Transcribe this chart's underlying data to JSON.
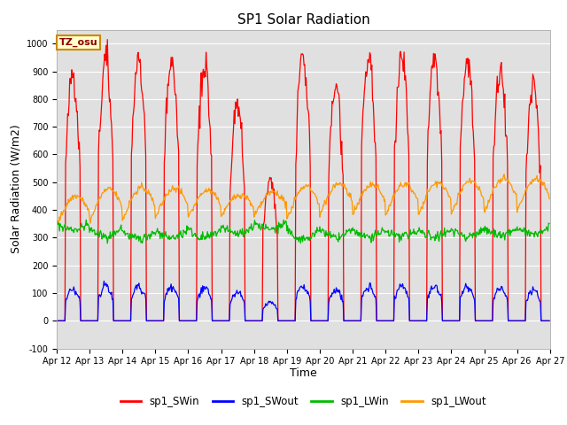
{
  "title": "SP1 Solar Radiation",
  "ylabel": "Solar Radiation (W/m2)",
  "xlabel": "Time",
  "ylim": [
    -100,
    1050
  ],
  "xtick_labels": [
    "Apr 12",
    "Apr 13",
    "Apr 14",
    "Apr 15",
    "Apr 16",
    "Apr 17",
    "Apr 18",
    "Apr 19",
    "Apr 20",
    "Apr 21",
    "Apr 22",
    "Apr 23",
    "Apr 24",
    "Apr 25",
    "Apr 26",
    "Apr 27"
  ],
  "ytick_positions": [
    -100,
    0,
    100,
    200,
    300,
    400,
    500,
    600,
    700,
    800,
    900,
    1000
  ],
  "legend_labels": [
    "sp1_SWin",
    "sp1_SWout",
    "sp1_LWin",
    "sp1_LWout"
  ],
  "legend_colors": [
    "#ff0000",
    "#0000ff",
    "#00bb00",
    "#ff9900"
  ],
  "tz_label": "TZ_osu",
  "bg_color": "#e0e0e0",
  "title_fontsize": 11,
  "axis_fontsize": 9,
  "tick_fontsize": 7,
  "n_days": 15,
  "pts_per_day": 48,
  "sw_peaks": [
    895,
    940,
    960,
    950,
    930,
    780,
    500,
    960,
    850,
    950,
    960,
    960,
    960,
    905,
    860
  ],
  "lwin_bases": [
    350,
    335,
    325,
    325,
    330,
    340,
    355,
    325,
    330,
    330,
    325,
    325,
    330,
    335,
    340
  ],
  "lwout_bases": [
    370,
    385,
    390,
    395,
    395,
    395,
    395,
    395,
    405,
    405,
    410,
    408,
    415,
    420,
    425
  ],
  "lwout_vars": [
    80,
    90,
    90,
    85,
    75,
    60,
    70,
    90,
    90,
    85,
    85,
    90,
    90,
    90,
    85
  ],
  "lwin_vars": [
    20,
    30,
    30,
    25,
    30,
    25,
    25,
    30,
    30,
    25,
    20,
    20,
    25,
    25,
    28
  ]
}
